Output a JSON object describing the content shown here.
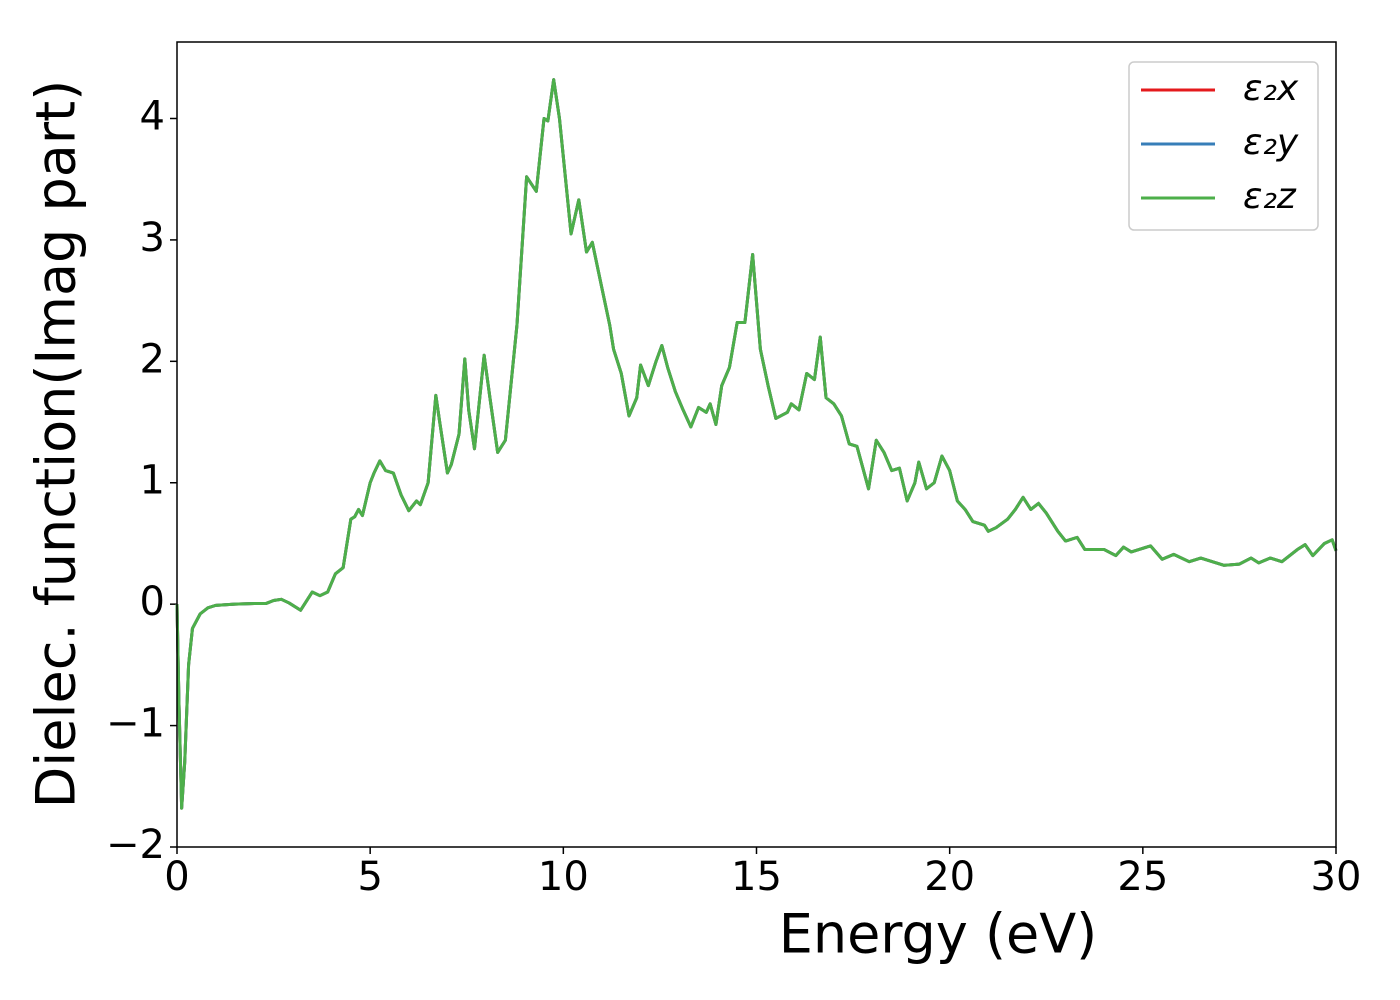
{
  "chart_data": {
    "type": "line",
    "xlabel": "Energy (eV)",
    "ylabel": "Dielec. function(Imag part)",
    "x": [
      0,
      0.05,
      0.12,
      0.2,
      0.3,
      0.4,
      0.6,
      0.8,
      1.0,
      1.5,
      2.0,
      2.3,
      2.5,
      2.7,
      2.9,
      3.2,
      3.5,
      3.7,
      3.9,
      4.1,
      4.3,
      4.5,
      4.6,
      4.7,
      4.8,
      5.0,
      5.1,
      5.25,
      5.4,
      5.6,
      5.8,
      6.0,
      6.2,
      6.3,
      6.5,
      6.7,
      6.8,
      7.0,
      7.1,
      7.3,
      7.45,
      7.55,
      7.7,
      7.95,
      8.1,
      8.3,
      8.5,
      8.8,
      9.05,
      9.3,
      9.5,
      9.6,
      9.75,
      9.9,
      10.2,
      10.4,
      10.6,
      10.75,
      11.0,
      11.2,
      11.3,
      11.5,
      11.7,
      11.9,
      12.0,
      12.2,
      12.4,
      12.55,
      12.7,
      12.9,
      13.1,
      13.3,
      13.5,
      13.7,
      13.8,
      13.95,
      14.1,
      14.3,
      14.5,
      14.7,
      14.9,
      15.1,
      15.3,
      15.5,
      15.8,
      15.9,
      16.1,
      16.3,
      16.5,
      16.65,
      16.8,
      17.0,
      17.2,
      17.4,
      17.6,
      17.9,
      18.1,
      18.3,
      18.5,
      18.7,
      18.9,
      19.1,
      19.2,
      19.4,
      19.6,
      19.8,
      20.0,
      20.2,
      20.4,
      20.6,
      20.9,
      21.0,
      21.2,
      21.5,
      21.7,
      21.9,
      22.1,
      22.3,
      22.5,
      22.8,
      23.0,
      23.3,
      23.5,
      24.0,
      24.3,
      24.5,
      24.7,
      25.2,
      25.5,
      25.8,
      26.2,
      26.5,
      26.8,
      27.1,
      27.5,
      27.8,
      28.0,
      28.3,
      28.6,
      29.0,
      29.2,
      29.4,
      29.7,
      29.9,
      30.0
    ],
    "series": [
      {
        "name": "ε₂x",
        "color": "#e41a1c",
        "values": [
          0,
          -0.8,
          -1.68,
          -1.3,
          -0.5,
          -0.2,
          -0.08,
          -0.03,
          -0.01,
          0,
          0.005,
          0.005,
          0.03,
          0.04,
          0.01,
          -0.05,
          0.1,
          0.07,
          0.1,
          0.25,
          0.3,
          0.7,
          0.72,
          0.78,
          0.73,
          1.0,
          1.08,
          1.18,
          1.1,
          1.08,
          0.9,
          0.77,
          0.85,
          0.82,
          1.0,
          1.72,
          1.5,
          1.08,
          1.15,
          1.4,
          2.02,
          1.6,
          1.28,
          2.05,
          1.7,
          1.25,
          1.35,
          2.3,
          3.52,
          3.4,
          4.0,
          3.98,
          4.32,
          4.0,
          3.05,
          3.33,
          2.9,
          2.98,
          2.6,
          2.3,
          2.1,
          1.9,
          1.55,
          1.7,
          1.97,
          1.8,
          2.0,
          2.13,
          1.95,
          1.75,
          1.6,
          1.46,
          1.62,
          1.58,
          1.65,
          1.48,
          1.8,
          1.95,
          2.32,
          2.32,
          2.88,
          2.1,
          1.8,
          1.53,
          1.58,
          1.65,
          1.6,
          1.9,
          1.85,
          2.2,
          1.7,
          1.65,
          1.55,
          1.32,
          1.3,
          0.95,
          1.35,
          1.25,
          1.1,
          1.12,
          0.85,
          1.0,
          1.17,
          0.95,
          1.0,
          1.22,
          1.1,
          0.85,
          0.78,
          0.68,
          0.65,
          0.6,
          0.63,
          0.7,
          0.78,
          0.88,
          0.78,
          0.83,
          0.75,
          0.6,
          0.52,
          0.55,
          0.45,
          0.45,
          0.4,
          0.47,
          0.43,
          0.48,
          0.37,
          0.41,
          0.35,
          0.38,
          0.35,
          0.32,
          0.33,
          0.38,
          0.34,
          0.38,
          0.35,
          0.45,
          0.49,
          0.4,
          0.5,
          0.53,
          0.44
        ]
      },
      {
        "name": "ε₂y",
        "color": "#377eb8",
        "values": [
          0,
          -0.8,
          -1.68,
          -1.3,
          -0.5,
          -0.2,
          -0.08,
          -0.03,
          -0.01,
          0,
          0.005,
          0.005,
          0.03,
          0.04,
          0.01,
          -0.05,
          0.1,
          0.07,
          0.1,
          0.25,
          0.3,
          0.7,
          0.72,
          0.78,
          0.73,
          1.0,
          1.08,
          1.18,
          1.1,
          1.08,
          0.9,
          0.77,
          0.85,
          0.82,
          1.0,
          1.72,
          1.5,
          1.08,
          1.15,
          1.4,
          2.02,
          1.6,
          1.28,
          2.05,
          1.7,
          1.25,
          1.35,
          2.3,
          3.52,
          3.4,
          4.0,
          3.98,
          4.32,
          4.0,
          3.05,
          3.33,
          2.9,
          2.98,
          2.6,
          2.3,
          2.1,
          1.9,
          1.55,
          1.7,
          1.97,
          1.8,
          2.0,
          2.13,
          1.95,
          1.75,
          1.6,
          1.46,
          1.62,
          1.58,
          1.65,
          1.48,
          1.8,
          1.95,
          2.32,
          2.32,
          2.88,
          2.1,
          1.8,
          1.53,
          1.58,
          1.65,
          1.6,
          1.9,
          1.85,
          2.2,
          1.7,
          1.65,
          1.55,
          1.32,
          1.3,
          0.95,
          1.35,
          1.25,
          1.1,
          1.12,
          0.85,
          1.0,
          1.17,
          0.95,
          1.0,
          1.22,
          1.1,
          0.85,
          0.78,
          0.68,
          0.65,
          0.6,
          0.63,
          0.7,
          0.78,
          0.88,
          0.78,
          0.83,
          0.75,
          0.6,
          0.52,
          0.55,
          0.45,
          0.45,
          0.4,
          0.47,
          0.43,
          0.48,
          0.37,
          0.41,
          0.35,
          0.38,
          0.35,
          0.32,
          0.33,
          0.38,
          0.34,
          0.38,
          0.35,
          0.45,
          0.49,
          0.4,
          0.5,
          0.53,
          0.44
        ]
      },
      {
        "name": "ε₂z",
        "color": "#4daf4a",
        "values": [
          0,
          -0.8,
          -1.68,
          -1.3,
          -0.5,
          -0.2,
          -0.08,
          -0.03,
          -0.01,
          0,
          0.005,
          0.005,
          0.03,
          0.04,
          0.01,
          -0.05,
          0.1,
          0.07,
          0.1,
          0.25,
          0.3,
          0.7,
          0.72,
          0.78,
          0.73,
          1.0,
          1.08,
          1.18,
          1.1,
          1.08,
          0.9,
          0.77,
          0.85,
          0.82,
          1.0,
          1.72,
          1.5,
          1.08,
          1.15,
          1.4,
          2.02,
          1.6,
          1.28,
          2.05,
          1.7,
          1.25,
          1.35,
          2.3,
          3.52,
          3.4,
          4.0,
          3.98,
          4.32,
          4.0,
          3.05,
          3.33,
          2.9,
          2.98,
          2.6,
          2.3,
          2.1,
          1.9,
          1.55,
          1.7,
          1.97,
          1.8,
          2.0,
          2.13,
          1.95,
          1.75,
          1.6,
          1.46,
          1.62,
          1.58,
          1.65,
          1.48,
          1.8,
          1.95,
          2.32,
          2.32,
          2.88,
          2.1,
          1.8,
          1.53,
          1.58,
          1.65,
          1.6,
          1.9,
          1.85,
          2.2,
          1.7,
          1.65,
          1.55,
          1.32,
          1.3,
          0.95,
          1.35,
          1.25,
          1.1,
          1.12,
          0.85,
          1.0,
          1.17,
          0.95,
          1.0,
          1.22,
          1.1,
          0.85,
          0.78,
          0.68,
          0.65,
          0.6,
          0.63,
          0.7,
          0.78,
          0.88,
          0.78,
          0.83,
          0.75,
          0.6,
          0.52,
          0.55,
          0.45,
          0.45,
          0.4,
          0.47,
          0.43,
          0.48,
          0.37,
          0.41,
          0.35,
          0.38,
          0.35,
          0.32,
          0.33,
          0.38,
          0.34,
          0.38,
          0.35,
          0.45,
          0.49,
          0.4,
          0.5,
          0.53,
          0.44
        ]
      }
    ],
    "xlim": [
      0,
      30
    ],
    "xticks": [
      0,
      5,
      10,
      15,
      20,
      25,
      30
    ],
    "ylim": [
      -2,
      4.63
    ],
    "yticks": [
      {
        "value": -2,
        "label": "−2"
      },
      {
        "value": -1,
        "label": "−1"
      },
      0,
      1,
      2,
      3,
      4
    ],
    "legend": "upper right",
    "grid": false
  }
}
